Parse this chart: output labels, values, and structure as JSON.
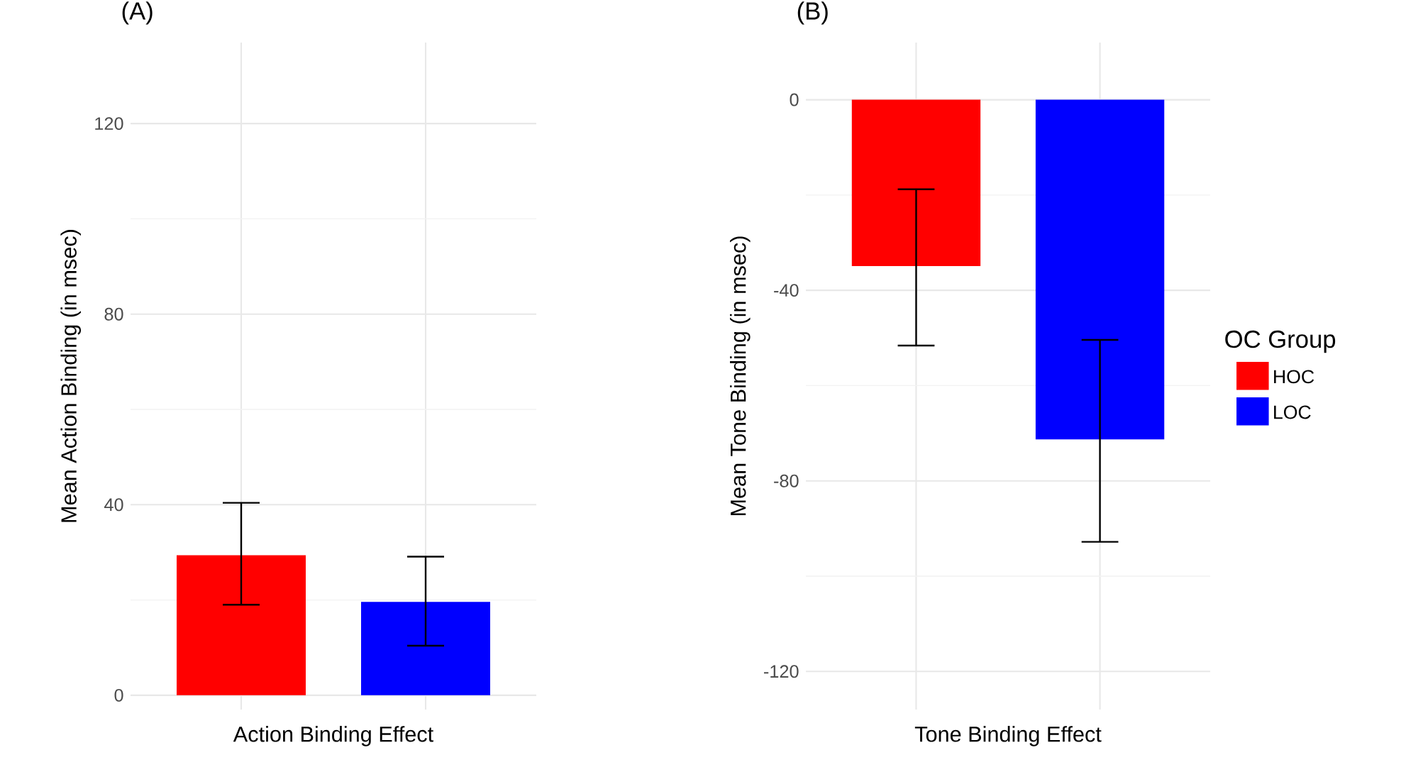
{
  "chart_data": [
    {
      "type": "bar",
      "title": "(A)",
      "xlabel": "Action Binding Effect",
      "ylabel": "Mean Action Binding (in msec)",
      "categories": [
        null,
        null
      ],
      "series": [
        {
          "color": "#ff0000",
          "values": [
            29.4,
            null
          ],
          "errors": [
            [
              19.0,
              40.4
            ],
            null
          ]
        },
        {
          "color": "#0000ff",
          "values": [
            null,
            19.6
          ],
          "errors": [
            null,
            [
              10.4,
              29.1
            ]
          ]
        }
      ],
      "ylim": [
        -3,
        137
      ],
      "yticks": [
        0,
        40,
        80,
        120
      ],
      "grid": true,
      "tick_labels": "y"
    },
    {
      "type": "bar",
      "title": "(B)",
      "xlabel": "Tone Binding Effect",
      "ylabel": "Mean Tone Binding (in msec)",
      "legend_title": "OC Group",
      "categories": [
        null,
        null
      ],
      "series": [
        {
          "name": "HOC",
          "color": "#ff0000",
          "values": [
            -34.9,
            null
          ],
          "errors": [
            [
              -51.6,
              -18.8
            ],
            null
          ]
        },
        {
          "name": "LOC",
          "color": "#0000ff",
          "values": [
            null,
            -71.3
          ],
          "errors": [
            null,
            [
              -92.8,
              -50.4
            ]
          ]
        }
      ],
      "ylim": [
        -128,
        12
      ],
      "yticks": [
        -120,
        -80,
        -40,
        0
      ],
      "grid": true,
      "tick_labels": "y",
      "legend": "right"
    }
  ]
}
